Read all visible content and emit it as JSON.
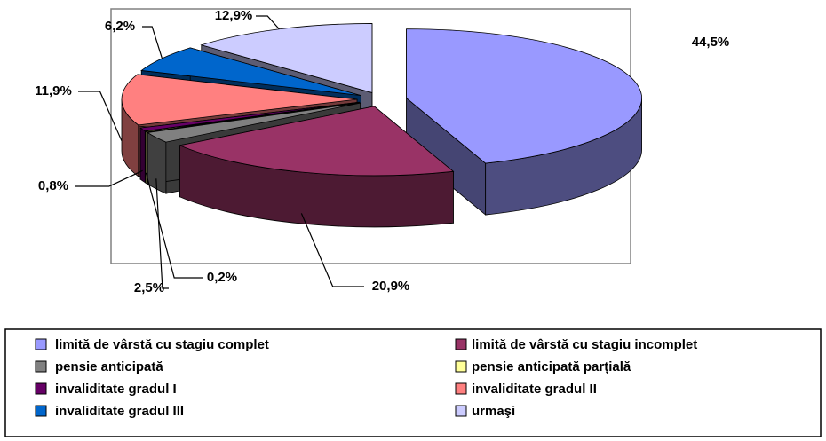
{
  "chart_data": {
    "type": "pie3d",
    "categories": [
      "limită de vârstă cu stagiu complet",
      "limită de vârstă cu stagiu incomplet",
      "pensie anticipată",
      "pensie anticipată parțială",
      "invaliditate gradul I",
      "invaliditate gradul II",
      "invaliditate gradul III",
      "urmaşi"
    ],
    "values": [
      44.5,
      20.9,
      2.5,
      0.2,
      0.8,
      11.9,
      6.2,
      12.9
    ],
    "value_labels": [
      "44,5%",
      "20,9%",
      "2,5%",
      "0,2%",
      "0,8%",
      "11,9%",
      "6,2%",
      "12,9%"
    ],
    "colors": [
      "#9999ff",
      "#993366",
      "#808080",
      "#ffff99",
      "#660066",
      "#ff8080",
      "#0066cc",
      "#ccccff"
    ],
    "legend": "bottom"
  }
}
